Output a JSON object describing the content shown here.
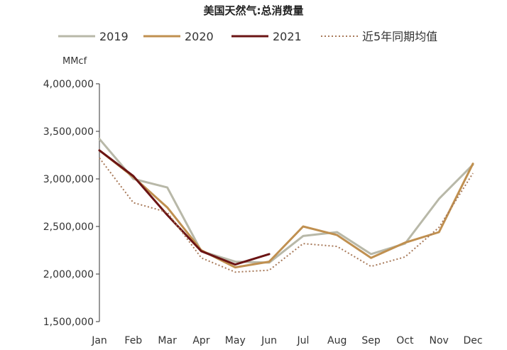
{
  "chart_data": {
    "type": "line",
    "title": "美国天然气:总消费量",
    "ylabel": "MMcf",
    "xlabel": "",
    "categories": [
      "Jan",
      "Feb",
      "Mar",
      "Apr",
      "May",
      "Jun",
      "Jul",
      "Aug",
      "Sep",
      "Oct",
      "Nov",
      "Dec"
    ],
    "ylim": [
      1500000,
      4000000
    ],
    "yticks": [
      1500000,
      2000000,
      2500000,
      3000000,
      3500000,
      4000000
    ],
    "ytick_labels": [
      "1,500,000",
      "2,000,000",
      "2,500,000",
      "3,000,000",
      "3,500,000",
      "4,000,000"
    ],
    "grid": false,
    "legend_position": "top",
    "series": [
      {
        "name": "2019",
        "color": "#b8b8a8",
        "dash": "solid",
        "values": [
          3420000,
          3000000,
          2910000,
          2240000,
          2130000,
          2120000,
          2400000,
          2440000,
          2210000,
          2320000,
          2790000,
          3150000
        ]
      },
      {
        "name": "2020",
        "color": "#c09050",
        "dash": "solid",
        "values": [
          3300000,
          3020000,
          2700000,
          2250000,
          2070000,
          2130000,
          2500000,
          2410000,
          2170000,
          2330000,
          2440000,
          3160000
        ]
      },
      {
        "name": "2021",
        "color": "#6b1414",
        "dash": "solid",
        "values": [
          3300000,
          3030000,
          2620000,
          2240000,
          2100000,
          2210000,
          null,
          null,
          null,
          null,
          null,
          null
        ]
      },
      {
        "name": "近5年同期均值",
        "color": "#a87a5a",
        "dash": "dotted",
        "values": [
          3220000,
          2750000,
          2650000,
          2170000,
          2020000,
          2040000,
          2320000,
          2290000,
          2080000,
          2180000,
          2490000,
          3060000
        ]
      }
    ]
  }
}
